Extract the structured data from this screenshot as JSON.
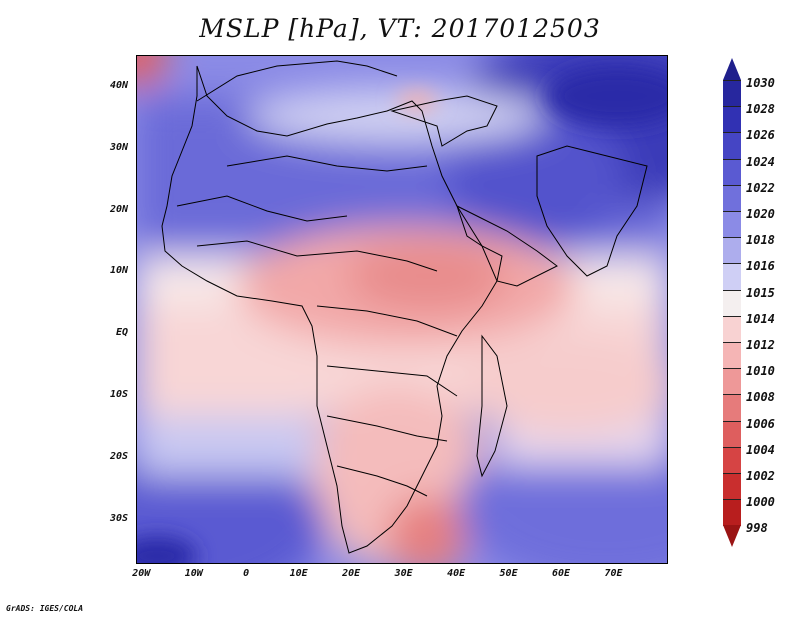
{
  "title": "MSLP [hPa], VT: 2017012503",
  "footer": "GrADS: IGES/COLA",
  "lat_labels": [
    "40N",
    "30N",
    "20N",
    "10N",
    "EQ",
    "10S",
    "20S",
    "30S"
  ],
  "lat_values": [
    40,
    30,
    20,
    10,
    0,
    -10,
    -20,
    -30
  ],
  "lon_labels": [
    "20W",
    "10W",
    "0",
    "10E",
    "20E",
    "30E",
    "40E",
    "50E",
    "60E",
    "70E"
  ],
  "lon_values": [
    -20,
    -10,
    0,
    10,
    20,
    30,
    40,
    50,
    60,
    70
  ],
  "colorbar": {
    "labels": [
      "1030",
      "1028",
      "1026",
      "1024",
      "1022",
      "1020",
      "1018",
      "1016",
      "1015",
      "1014",
      "1012",
      "1010",
      "1008",
      "1006",
      "1004",
      "1002",
      "1000",
      "998"
    ],
    "colors": [
      "#1f1f8c",
      "#27279e",
      "#3131b3",
      "#4545c4",
      "#5a5ad2",
      "#7070dc",
      "#8b8be6",
      "#adaded",
      "#cfcff5",
      "#f4efef",
      "#f8d2d2",
      "#f5b5b5",
      "#ee9898",
      "#e67b7b",
      "#de5e5e",
      "#d64444",
      "#c92e2e",
      "#b81e1e",
      "#9a1414"
    ]
  },
  "map_extent": {
    "lon_min": -21,
    "lon_max": 80,
    "lat_min": -37,
    "lat_max": 45
  },
  "regions": [
    {
      "name": "sahara-high-pressure",
      "lon": 0,
      "lat": 28,
      "value": 1022
    },
    {
      "name": "central-africa-low",
      "lon": 25,
      "lat": 10,
      "value": 1008
    },
    {
      "name": "arabia-high",
      "lon": 50,
      "lat": 28,
      "value": 1024
    },
    {
      "name": "central-asia-high",
      "lon": 70,
      "lat": 40,
      "value": 1030
    },
    {
      "name": "southern-africa-low",
      "lon": 30,
      "lat": -33,
      "value": 1006
    },
    {
      "name": "south-atlantic-high",
      "lon": -10,
      "lat": -30,
      "value": 1024
    },
    {
      "name": "south-indian-ocean-high",
      "lon": 65,
      "lat": -28,
      "value": 1022
    }
  ]
}
